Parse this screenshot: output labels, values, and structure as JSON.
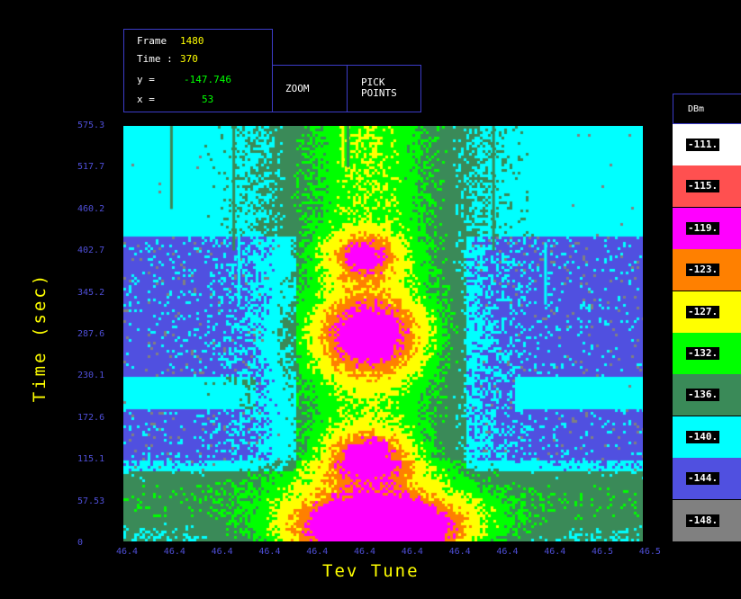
{
  "readout": {
    "frame_label": "Frame",
    "frame_value": "1480",
    "time_label": "Time :",
    "time_value": "370",
    "y_label": "y =",
    "y_value": "-147.746",
    "x_label": "x =",
    "x_value": "53"
  },
  "buttons": {
    "zoom_label": "ZOOM",
    "pick_line1": "PICK",
    "pick_line2": "POINTS"
  },
  "colors": {
    "readout_frame": "#ffff00",
    "readout_time": "#ffff00",
    "readout_xy": "#00ff00",
    "axis_tick": "#4f4fd8",
    "axis_label": "#ffff00",
    "border": "#3c3cc8"
  },
  "axes": {
    "ylabel": "Time (sec)",
    "xlabel": "Tev Tune",
    "yticks": [
      "575.3",
      "517.7",
      "460.2",
      "402.7",
      "345.2",
      "287.6",
      "230.1",
      "172.6",
      "115.1",
      "57.53",
      "0"
    ],
    "xticks": [
      "46.4",
      "46.4",
      "46.4",
      "46.4",
      "46.4",
      "46.4",
      "46.4",
      "46.4",
      "46.4",
      "46.4",
      "46.5",
      "46.5"
    ]
  },
  "legend": {
    "title": "DBm",
    "entries": [
      {
        "label": "-111.",
        "color": "#ffffff"
      },
      {
        "label": "-115.",
        "color": "#ff5050"
      },
      {
        "label": "-119.",
        "color": "#ff00ff"
      },
      {
        "label": "-123.",
        "color": "#ff8000"
      },
      {
        "label": "-127.",
        "color": "#ffff00"
      },
      {
        "label": "-132.",
        "color": "#00ff00"
      },
      {
        "label": "-136.",
        "color": "#3a8a58"
      },
      {
        "label": "-140.",
        "color": "#00ffff"
      },
      {
        "label": "-144.",
        "color": "#5050e0"
      },
      {
        "label": "-148.",
        "color": "#808080"
      }
    ]
  }
}
